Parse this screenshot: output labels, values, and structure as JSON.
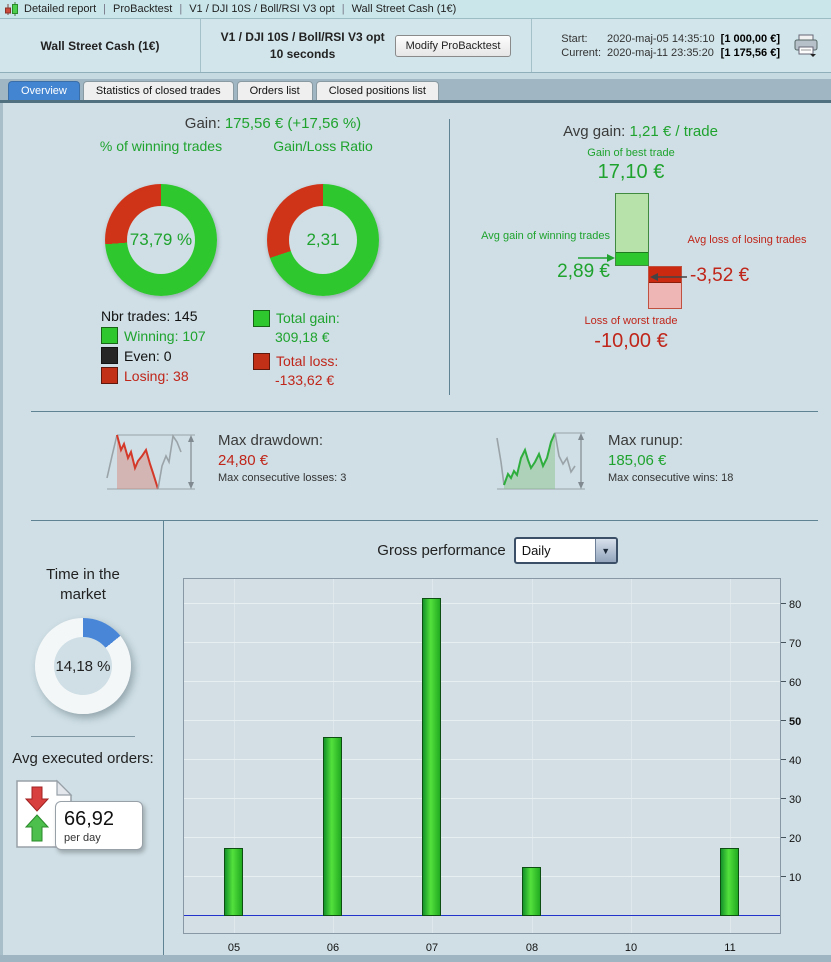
{
  "title_bar": {
    "segments": [
      "Detailed report",
      "ProBacktest",
      "V1 / DJI 10S / Boll/RSI V3 opt",
      "Wall Street Cash (1€)"
    ]
  },
  "header": {
    "account": "Wall Street Cash (1€)",
    "system_name": "V1 / DJI 10S / Boll/RSI V3 opt",
    "timeframe": "10 seconds",
    "modify_button": "Modify ProBacktest",
    "start_label": "Start:",
    "start_datetime": "2020-maj-05 14:35:10",
    "start_equity": "[1 000,00 €]",
    "current_label": "Current:",
    "current_datetime": "2020-maj-11 23:35:20",
    "current_equity": "[1 175,56 €]"
  },
  "tabs": [
    {
      "label": "Overview",
      "active": true
    },
    {
      "label": "Statistics of closed trades",
      "active": false
    },
    {
      "label": "Orders list",
      "active": false
    },
    {
      "label": "Closed positions list",
      "active": false
    }
  ],
  "overview": {
    "gain": {
      "label": "Gain:",
      "value": "175,56 € (+17,56 %)",
      "winning_title": "% of winning trades",
      "winning_pct": "73,79 %",
      "winning_pct_num": 73.79,
      "ratio_title": "Gain/Loss Ratio",
      "ratio": "2,31",
      "ratio_green_pct": 69.79,
      "nbr_trades": "Nbr trades: 145",
      "legend": [
        {
          "label": "Winning: 107",
          "color": "#2ec82e",
          "text_color": "#1fa32e"
        },
        {
          "label": "Even: 0",
          "color": "#262626",
          "text_color": "#111111"
        },
        {
          "label": "Losing: 38",
          "color": "#c23018",
          "text_color": "#c0251a"
        }
      ],
      "total_gain_label": "Total gain:",
      "total_gain": "309,18 €",
      "total_loss_label": "Total loss:",
      "total_loss": "-133,62 €"
    },
    "avg_gain": {
      "label": "Avg gain:",
      "value": "1,21 € / trade",
      "best_label": "Gain of best trade",
      "best": "17,10 €",
      "best_value": 17.1,
      "avg_win_label": "Avg gain of winning trades",
      "avg_win": "2,89 €",
      "avg_win_value": 2.89,
      "avg_loss_label": "Avg loss of losing trades",
      "avg_loss": "-3,52 €",
      "avg_loss_value": 3.52,
      "worst_label": "Loss of worst trade",
      "worst": "-10,00 €",
      "worst_value": 10.0
    },
    "drawdown": {
      "title": "Max drawdown:",
      "value": "24,80 €",
      "sub": "Max consecutive losses: 3"
    },
    "runup": {
      "title": "Max runup:",
      "value": "185,06 €",
      "sub": "Max consecutive wins: 18"
    }
  },
  "left_panel": {
    "time_in_market_label": "Time in the market",
    "time_in_market": "14,18 %",
    "time_pct": 14.18,
    "avg_orders_label": "Avg executed orders:",
    "avg_orders": "66,92",
    "per_day": "per day"
  },
  "performance": {
    "label": "Gross performance",
    "period": "Daily"
  },
  "chart_data": {
    "type": "bar",
    "title": "Gross performance",
    "period_selector": "Daily",
    "categories": [
      "05",
      "06",
      "07",
      "08",
      "10",
      "11"
    ],
    "values": [
      17.5,
      46,
      81.5,
      12.5,
      0,
      17.5
    ],
    "xlabel": "",
    "ylabel": "",
    "ylim": [
      -4.4,
      86.4
    ],
    "yticks": [
      10,
      20,
      30,
      40,
      50,
      60,
      70,
      80
    ],
    "grid": true,
    "legend_position": "none",
    "bar_color": "#33cc33",
    "zero_line_color": "#2233cc"
  },
  "colors": {
    "donut_green": "#2ec82e",
    "donut_red": "#d03418",
    "time_blue": "#4a86d8",
    "time_rest": "#f4f7f8",
    "green_text": "#1fa32e",
    "red_text": "#c0251a"
  }
}
